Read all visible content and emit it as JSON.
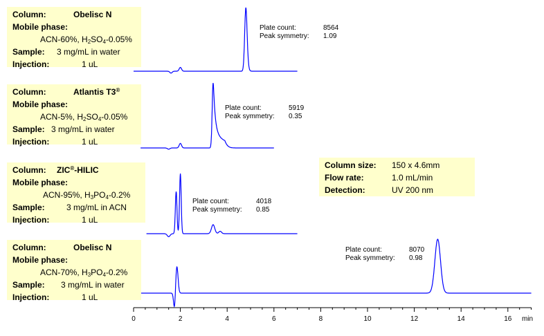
{
  "chromatograms": [
    {
      "column_label": "Column:",
      "column": "Obelisc N",
      "column_mark": "",
      "mobile_label": "Mobile phase:",
      "mobile_pre": "ACN-60%, H",
      "mobile_s1": "2",
      "mobile_mid": "SO",
      "mobile_s2": "4",
      "mobile_post": "-0.05%",
      "sample_label": "Sample:",
      "sample": "3 mg/mL in water",
      "injection_label": "Injection:",
      "injection": "1 uL",
      "plate_count_label": "Plate count:",
      "plate_count": "8564",
      "symmetry_label": "Peak symmetry:",
      "symmetry": "1.09"
    },
    {
      "column_label": "Column:",
      "column": "Atlantis T3",
      "column_mark": "®",
      "mobile_label": "Mobile phase:",
      "mobile_pre": "ACN-5%, H",
      "mobile_s1": "2",
      "mobile_mid": "SO",
      "mobile_s2": "4",
      "mobile_post": "-0.05%",
      "sample_label": "Sample:",
      "sample": "3 mg/mL in water",
      "injection_label": "Injection:",
      "injection": "1 uL",
      "plate_count_label": "Plate count:",
      "plate_count": "5919",
      "symmetry_label": "Peak symmetry:",
      "symmetry": "0.35"
    },
    {
      "column_label": "Column:",
      "column": "ZIC",
      "column_mark": "®",
      "column_suffix": "-HILIC",
      "mobile_label": "Mobile phase:",
      "mobile_pre": "ACN-95%, H",
      "mobile_s1": "3",
      "mobile_mid": "PO",
      "mobile_s2": "4",
      "mobile_post": "-0.2%",
      "sample_label": "Sample:",
      "sample": "3 mg/mL in ACN",
      "injection_label": "Injection:",
      "injection": "1 uL",
      "plate_count_label": "Plate count:",
      "plate_count": "4018",
      "symmetry_label": "Peak symmetry:",
      "symmetry": "0.85"
    },
    {
      "column_label": "Column:",
      "column": "Obelisc N",
      "column_mark": "",
      "mobile_label": "Mobile phase:",
      "mobile_pre": "ACN-70%, H",
      "mobile_s1": "3",
      "mobile_mid": "PO",
      "mobile_s2": "4",
      "mobile_post": "-0.2%",
      "sample_label": "Sample:",
      "sample": "3 mg/mL in water",
      "injection_label": "Injection:",
      "injection": "1 uL",
      "plate_count_label": "Plate count:",
      "plate_count": "8070",
      "symmetry_label": "Peak symmetry:",
      "symmetry": "0.98"
    }
  ],
  "conditions": {
    "size_label": "Column size:",
    "size": "150 x 4.6mm",
    "flow_label": "Flow rate:",
    "flow": "1.0 mL/min",
    "detection_label": "Detection:",
    "detection": "UV 200 nm"
  },
  "colors": {
    "trace": "#0000ff",
    "box": "#ffffcc",
    "axis": "#000000"
  },
  "chart_data": {
    "type": "line",
    "title": "",
    "xlabel": "min",
    "ylabel": "",
    "xlim": [
      0,
      17
    ],
    "x_ticks": [
      0,
      2,
      4,
      6,
      8,
      10,
      12,
      14,
      16
    ],
    "tick_labels": [
      "0",
      "2",
      "4",
      "6",
      "8",
      "10",
      "12",
      "14",
      "16"
    ],
    "grid": false,
    "series": [
      {
        "x_end": 7.0,
        "peaks": [
          {
            "t": 1.6,
            "h": -0.03,
            "w": 0.05
          },
          {
            "t": 2.0,
            "h": 0.06,
            "w": 0.05
          },
          {
            "t": 4.8,
            "h": 1.0,
            "w": 0.05,
            "tail": 0.03
          }
        ]
      },
      {
        "x_end": 6.0,
        "peaks": [
          {
            "t": 1.5,
            "h": -0.02,
            "w": 0.05
          },
          {
            "t": 2.0,
            "h": 0.07,
            "w": 0.05
          },
          {
            "t": 3.4,
            "h": 1.0,
            "w": 0.04,
            "tail": 0.2
          }
        ]
      },
      {
        "x_end": 7.0,
        "peaks": [
          {
            "t": 1.5,
            "h": -0.05,
            "w": 0.06
          },
          {
            "t": 1.82,
            "h": 0.7,
            "w": 0.035
          },
          {
            "t": 2.0,
            "h": 1.0,
            "w": 0.035
          },
          {
            "t": 3.4,
            "h": 0.15,
            "w": 0.07
          },
          {
            "t": 3.7,
            "h": 0.04,
            "w": 0.06
          }
        ]
      },
      {
        "x_end": 17.0,
        "peaks": [
          {
            "t": 1.75,
            "h": -0.3,
            "w": 0.04
          },
          {
            "t": 1.85,
            "h": 0.5,
            "w": 0.05
          },
          {
            "t": 13.0,
            "h": 1.0,
            "w": 0.12
          }
        ]
      }
    ]
  }
}
